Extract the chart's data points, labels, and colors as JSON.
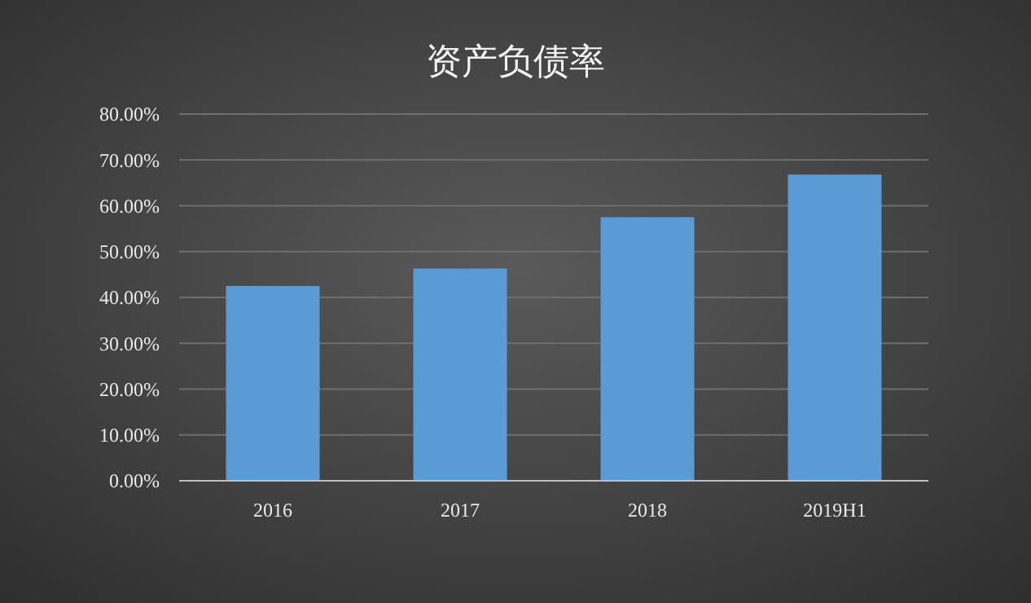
{
  "chart_data": {
    "type": "bar",
    "title": "资产负债率",
    "categories": [
      "2016",
      "2017",
      "2018",
      "2019H1"
    ],
    "values": [
      42.5,
      46.3,
      57.5,
      66.8
    ],
    "color": "#5b9bd5",
    "ylim": [
      0,
      80
    ],
    "yticks": [
      {
        "value": 0,
        "label": "0.00%"
      },
      {
        "value": 10,
        "label": "10.00%"
      },
      {
        "value": 20,
        "label": "20.00%"
      },
      {
        "value": 30,
        "label": "30.00%"
      },
      {
        "value": 40,
        "label": "40.00%"
      },
      {
        "value": 50,
        "label": "50.00%"
      },
      {
        "value": 60,
        "label": "60.00%"
      },
      {
        "value": 70,
        "label": "70.00%"
      },
      {
        "value": 80,
        "label": "80.00%"
      }
    ],
    "grid": "y"
  }
}
